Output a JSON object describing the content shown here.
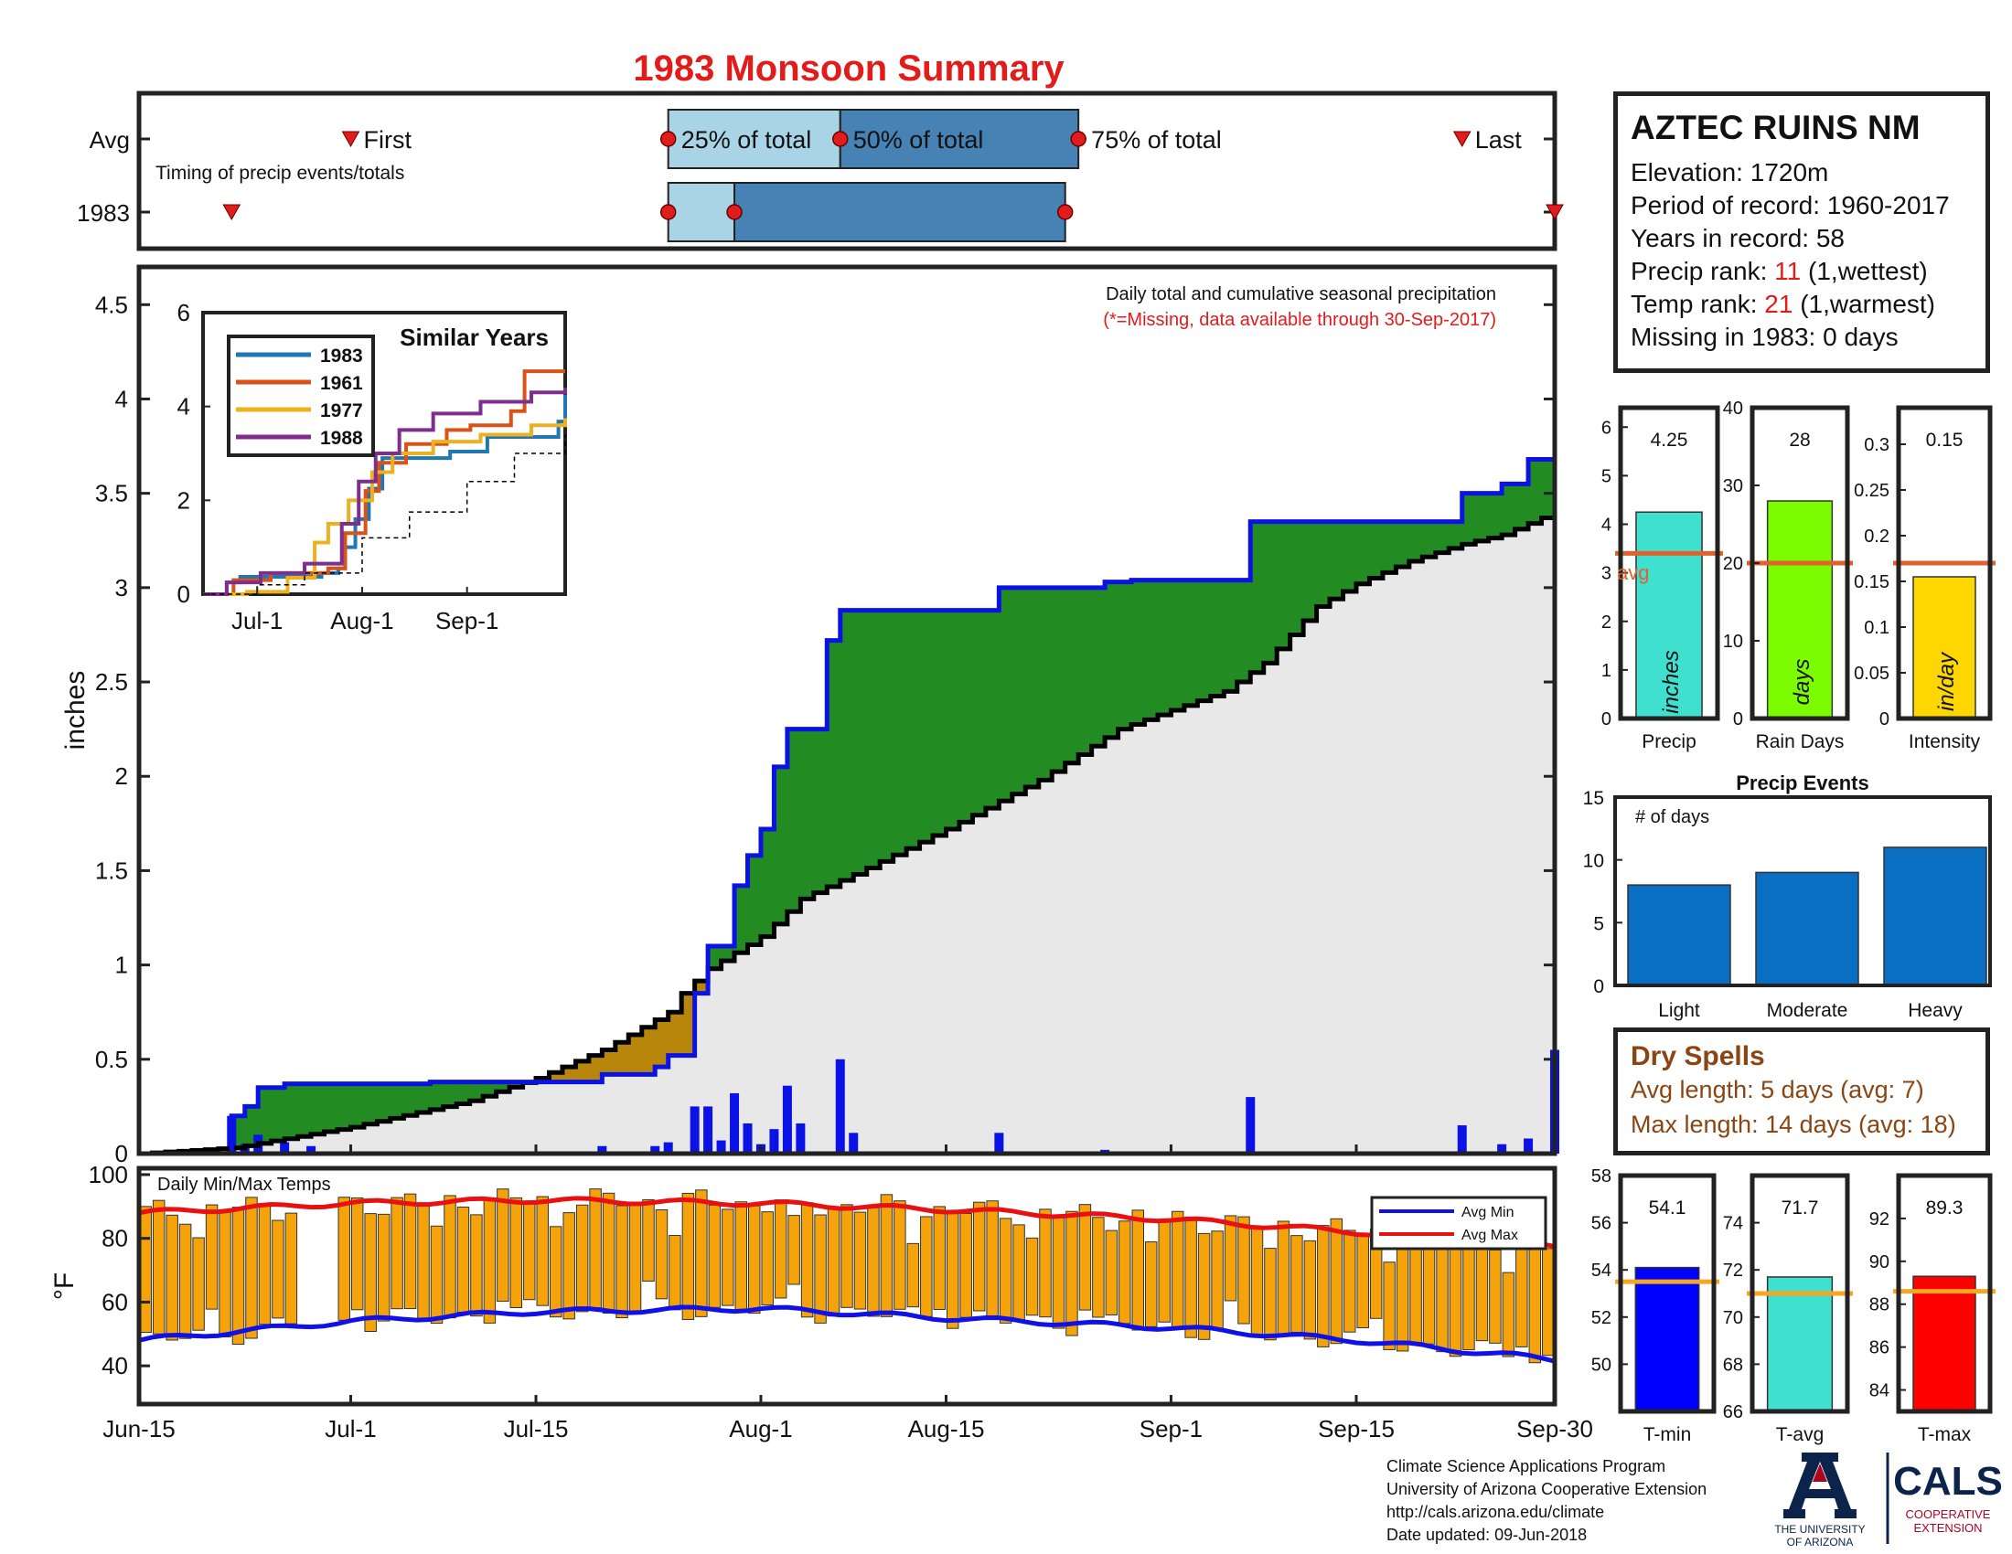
{
  "page": {
    "title": "1983 Monsoon Summary"
  },
  "station": {
    "name": "AZTEC RUINS NM",
    "elevation": "Elevation: 1720m",
    "period": "Period of record: 1960-2017",
    "years": "Years in record: 58",
    "precip_rank_label": "Precip rank: ",
    "precip_rank_value": "11",
    "precip_rank_note": " (1,wettest)",
    "temp_rank_label": "Temp rank: ",
    "temp_rank_value": "21",
    "temp_rank_note": " (1,warmest)",
    "missing": "Missing in 1983: 0 days"
  },
  "dry_spells": {
    "title": "Dry Spells",
    "avg": "Avg length: 5 days (avg: 7)",
    "max": "Max length: 14 days (avg: 18)"
  },
  "credits": {
    "line1": "Climate Science Applications Program",
    "line2": "University of Arizona Cooperative Extension",
    "line3": "http://cals.arizona.edu/climate",
    "line4": "Date updated: 09-Jun-2018",
    "ua_line1": "THE UNIVERSITY",
    "ua_line2": "OF ARIZONA",
    "cals_name": "CALS",
    "cals_line1": "COOPERATIVE",
    "cals_line2": "EXTENSION"
  },
  "colors": {
    "title": "#e21b1b",
    "cumulative_line": "#0a12e6",
    "above_avg_fill": "#228b22",
    "below_avg_fill": "#b8860b",
    "avg_area": "#e8e8e8",
    "daily_bar": "#0a12e6",
    "temp_bar": "#f5a30a",
    "avg_min": "#1010e8",
    "avg_max": "#e81010",
    "light_blue": "#a8d4e6",
    "steel_blue": "#4682b4",
    "precip_bar": "#40e0d0",
    "days_bar": "#7cfc00",
    "intensity_bar": "#ffd700",
    "events_bar": "#0a6fc2",
    "tmin_bar": "#0000ff",
    "tavg_bar": "#40e0d0",
    "tmax_bar": "#ff0000",
    "avg_line_orange": "#e0622a",
    "avg_line_yellow": "#f5a623"
  },
  "chart_data": [
    {
      "id": "timing",
      "type": "bar",
      "title": "",
      "rows": [
        "Avg",
        "1983"
      ],
      "note": "Timing of precip events/totals",
      "labels": {
        "first": "First",
        "p25": "25% of total",
        "p50": "50% of total",
        "p75": "75% of total",
        "last": "Last"
      },
      "avg": {
        "first": "2021-07-01",
        "p25": "2021-07-25",
        "p50": "2021-08-07",
        "p75": "2021-08-25",
        "last": "2021-09-23"
      },
      "year": {
        "first": "2021-06-22",
        "p25": "2021-07-25",
        "p50": "2021-07-30",
        "p75": "2021-08-24",
        "last": "2021-09-30"
      },
      "xlim": [
        "2021-06-15",
        "2021-09-30"
      ]
    },
    {
      "id": "precip_main",
      "type": "area",
      "title": "Daily total and cumulative seasonal precipitation",
      "subtitle": "(*=Missing, data available through 30-Sep-2017)",
      "ylabel": "inches",
      "ylim": [
        0,
        4.7
      ],
      "yticks": [
        0,
        0.5,
        1,
        1.5,
        2,
        2.5,
        3,
        3.5,
        4,
        4.5
      ],
      "xticks": [
        "Jun-15",
        "Jul-1",
        "Jul-15",
        "Aug-1",
        "Aug-15",
        "Sep-1",
        "Sep-15",
        "Sep-30"
      ],
      "xtick_dates": [
        "2021-06-15",
        "2021-07-01",
        "2021-07-15",
        "2021-08-01",
        "2021-08-15",
        "2021-09-01",
        "2021-09-15",
        "2021-09-30"
      ],
      "daily_precip": [
        {
          "date": "2021-06-22",
          "inches": 0.2
        },
        {
          "date": "2021-06-23",
          "inches": 0.05
        },
        {
          "date": "2021-06-24",
          "inches": 0.1
        },
        {
          "date": "2021-06-26",
          "inches": 0.06
        },
        {
          "date": "2021-06-28",
          "inches": 0.04
        },
        {
          "date": "2021-07-07",
          "inches": 0.01
        },
        {
          "date": "2021-07-20",
          "inches": 0.04
        },
        {
          "date": "2021-07-24",
          "inches": 0.04
        },
        {
          "date": "2021-07-25",
          "inches": 0.06
        },
        {
          "date": "2021-07-27",
          "inches": 0.25
        },
        {
          "date": "2021-07-28",
          "inches": 0.25
        },
        {
          "date": "2021-07-29",
          "inches": 0.07
        },
        {
          "date": "2021-07-30",
          "inches": 0.32
        },
        {
          "date": "2021-07-31",
          "inches": 0.16
        },
        {
          "date": "2021-08-01",
          "inches": 0.05
        },
        {
          "date": "2021-08-02",
          "inches": 0.13
        },
        {
          "date": "2021-08-03",
          "inches": 0.36
        },
        {
          "date": "2021-08-04",
          "inches": 0.16
        },
        {
          "date": "2021-08-07",
          "inches": 0.5
        },
        {
          "date": "2021-08-08",
          "inches": 0.11
        },
        {
          "date": "2021-08-19",
          "inches": 0.11
        },
        {
          "date": "2021-08-27",
          "inches": 0.02
        },
        {
          "date": "2021-09-07",
          "inches": 0.3
        },
        {
          "date": "2021-09-23",
          "inches": 0.15
        },
        {
          "date": "2021-09-26",
          "inches": 0.05
        },
        {
          "date": "2021-09-28",
          "inches": 0.08
        },
        {
          "date": "2021-09-30",
          "inches": 0.55
        }
      ],
      "cumulative_1983": [
        {
          "date": "2021-06-15",
          "inches": 0
        },
        {
          "date": "2021-06-22",
          "inches": 0.2
        },
        {
          "date": "2021-06-23",
          "inches": 0.25
        },
        {
          "date": "2021-06-24",
          "inches": 0.35
        },
        {
          "date": "2021-06-26",
          "inches": 0.37
        },
        {
          "date": "2021-07-07",
          "inches": 0.38
        },
        {
          "date": "2021-07-20",
          "inches": 0.42
        },
        {
          "date": "2021-07-24",
          "inches": 0.46
        },
        {
          "date": "2021-07-25",
          "inches": 0.52
        },
        {
          "date": "2021-07-27",
          "inches": 0.85
        },
        {
          "date": "2021-07-28",
          "inches": 1.1
        },
        {
          "date": "2021-07-30",
          "inches": 1.42
        },
        {
          "date": "2021-07-31",
          "inches": 1.58
        },
        {
          "date": "2021-08-01",
          "inches": 1.72
        },
        {
          "date": "2021-08-02",
          "inches": 2.05
        },
        {
          "date": "2021-08-03",
          "inches": 2.25
        },
        {
          "date": "2021-08-06",
          "inches": 2.72
        },
        {
          "date": "2021-08-07",
          "inches": 2.88
        },
        {
          "date": "2021-08-19",
          "inches": 3.0
        },
        {
          "date": "2021-08-27",
          "inches": 3.03
        },
        {
          "date": "2021-08-29",
          "inches": 3.04
        },
        {
          "date": "2021-09-07",
          "inches": 3.35
        },
        {
          "date": "2021-09-23",
          "inches": 3.5
        },
        {
          "date": "2021-09-26",
          "inches": 3.55
        },
        {
          "date": "2021-09-28",
          "inches": 3.68
        },
        {
          "date": "2021-09-30",
          "inches": 4.25
        }
      ],
      "cumulative_avg": [
        {
          "date": "2021-06-15",
          "inches": 0
        },
        {
          "date": "2021-06-22",
          "inches": 0.03
        },
        {
          "date": "2021-07-01",
          "inches": 0.14
        },
        {
          "date": "2021-07-10",
          "inches": 0.28
        },
        {
          "date": "2021-07-15",
          "inches": 0.4
        },
        {
          "date": "2021-07-20",
          "inches": 0.55
        },
        {
          "date": "2021-07-25",
          "inches": 0.75
        },
        {
          "date": "2021-07-26",
          "inches": 0.85
        },
        {
          "date": "2021-07-28",
          "inches": 0.98
        },
        {
          "date": "2021-08-01",
          "inches": 1.15
        },
        {
          "date": "2021-08-04",
          "inches": 1.35
        },
        {
          "date": "2021-08-08",
          "inches": 1.48
        },
        {
          "date": "2021-08-15",
          "inches": 1.72
        },
        {
          "date": "2021-08-22",
          "inches": 1.98
        },
        {
          "date": "2021-08-28",
          "inches": 2.25
        },
        {
          "date": "2021-09-01",
          "inches": 2.35
        },
        {
          "date": "2021-09-05",
          "inches": 2.45
        },
        {
          "date": "2021-09-08",
          "inches": 2.6
        },
        {
          "date": "2021-09-12",
          "inches": 2.9
        },
        {
          "date": "2021-09-15",
          "inches": 3.02
        },
        {
          "date": "2021-09-19",
          "inches": 3.14
        },
        {
          "date": "2021-09-23",
          "inches": 3.23
        },
        {
          "date": "2021-09-26",
          "inches": 3.28
        },
        {
          "date": "2021-09-30",
          "inches": 3.4
        }
      ]
    },
    {
      "id": "similar_years",
      "type": "line",
      "title": "Similar Years",
      "ylim": [
        0,
        6
      ],
      "yticks": [
        0,
        2,
        4,
        6
      ],
      "xticks": [
        "Jul-1",
        "Aug-1",
        "Sep-1"
      ],
      "xtick_dates": [
        "2021-07-01",
        "2021-08-01",
        "2021-09-01"
      ],
      "xlim": [
        "2021-06-15",
        "2021-09-30"
      ],
      "series": [
        {
          "name": "1983",
          "color": "#1f77b4",
          "points": [
            [
              "2021-06-15",
              0
            ],
            [
              "2021-06-22",
              0.25
            ],
            [
              "2021-06-26",
              0.37
            ],
            [
              "2021-07-20",
              0.45
            ],
            [
              "2021-07-25",
              0.55
            ],
            [
              "2021-07-27",
              1.0
            ],
            [
              "2021-07-30",
              1.6
            ],
            [
              "2021-08-03",
              2.25
            ],
            [
              "2021-08-07",
              2.9
            ],
            [
              "2021-08-27",
              3.04
            ],
            [
              "2021-09-07",
              3.35
            ],
            [
              "2021-09-28",
              3.68
            ],
            [
              "2021-09-30",
              4.25
            ]
          ]
        },
        {
          "name": "1961",
          "color": "#d95319",
          "points": [
            [
              "2021-06-15",
              0
            ],
            [
              "2021-06-24",
              0.3
            ],
            [
              "2021-07-05",
              0.45
            ],
            [
              "2021-07-22",
              0.55
            ],
            [
              "2021-07-27",
              1.3
            ],
            [
              "2021-08-02",
              2.2
            ],
            [
              "2021-08-06",
              2.8
            ],
            [
              "2021-08-14",
              3.2
            ],
            [
              "2021-08-26",
              3.5
            ],
            [
              "2021-09-02",
              3.6
            ],
            [
              "2021-09-14",
              3.9
            ],
            [
              "2021-09-18",
              4.75
            ],
            [
              "2021-09-30",
              4.75
            ]
          ]
        },
        {
          "name": "1977",
          "color": "#edb120",
          "points": [
            [
              "2021-06-15",
              0
            ],
            [
              "2021-06-28",
              0.05
            ],
            [
              "2021-07-10",
              0.35
            ],
            [
              "2021-07-18",
              1.1
            ],
            [
              "2021-07-22",
              1.5
            ],
            [
              "2021-07-28",
              2.0
            ],
            [
              "2021-08-04",
              2.6
            ],
            [
              "2021-08-10",
              3.0
            ],
            [
              "2021-08-22",
              3.25
            ],
            [
              "2021-09-05",
              3.4
            ],
            [
              "2021-09-20",
              3.6
            ],
            [
              "2021-09-30",
              3.75
            ]
          ]
        },
        {
          "name": "1988",
          "color": "#7e2f8e",
          "points": [
            [
              "2021-06-15",
              0
            ],
            [
              "2021-06-22",
              0.25
            ],
            [
              "2021-07-02",
              0.45
            ],
            [
              "2021-07-15",
              0.65
            ],
            [
              "2021-07-26",
              1.5
            ],
            [
              "2021-07-31",
              2.4
            ],
            [
              "2021-08-05",
              3.0
            ],
            [
              "2021-08-12",
              3.5
            ],
            [
              "2021-08-22",
              3.85
            ],
            [
              "2021-09-05",
              4.1
            ],
            [
              "2021-09-20",
              4.3
            ],
            [
              "2021-09-30",
              4.4
            ]
          ]
        },
        {
          "name": "",
          "color": "#000000",
          "dashed": true,
          "points": [
            [
              "2021-06-15",
              0
            ],
            [
              "2021-07-01",
              0.2
            ],
            [
              "2021-07-15",
              0.45
            ],
            [
              "2021-08-01",
              1.2
            ],
            [
              "2021-08-15",
              1.75
            ],
            [
              "2021-09-01",
              2.4
            ],
            [
              "2021-09-15",
              3.0
            ],
            [
              "2021-09-30",
              3.4
            ]
          ]
        }
      ]
    },
    {
      "id": "temps",
      "type": "bar",
      "title": "Daily Min/Max Temps",
      "ylabel": "°F",
      "ylim": [
        28,
        102
      ],
      "yticks": [
        40,
        60,
        80,
        100
      ],
      "legend": [
        "Avg Min",
        "Avg Max"
      ],
      "avg_max": [
        [
          "2021-06-15",
          88
        ],
        [
          "2021-07-01",
          91
        ],
        [
          "2021-07-15",
          92
        ],
        [
          "2021-08-01",
          91
        ],
        [
          "2021-08-15",
          89
        ],
        [
          "2021-09-01",
          86
        ],
        [
          "2021-09-15",
          82
        ],
        [
          "2021-09-30",
          78
        ]
      ],
      "avg_min": [
        [
          "2021-06-15",
          48
        ],
        [
          "2021-07-01",
          54
        ],
        [
          "2021-07-15",
          57
        ],
        [
          "2021-08-01",
          58
        ],
        [
          "2021-08-15",
          55
        ],
        [
          "2021-09-01",
          52
        ],
        [
          "2021-09-15",
          48
        ],
        [
          "2021-09-30",
          42
        ]
      ]
    },
    {
      "id": "totals",
      "type": "bar",
      "panels": [
        {
          "label": "Precip",
          "unit": "inches",
          "value": 4.25,
          "value_label": "4.25",
          "avg": 3.4,
          "avg_label": "avg",
          "ylim": [
            0,
            6.4
          ],
          "yticks": [
            0,
            1,
            2,
            3,
            4,
            5,
            6
          ]
        },
        {
          "label": "Rain Days",
          "unit": "days",
          "value": 28,
          "value_label": "28",
          "avg": 20,
          "ylim": [
            0,
            40
          ],
          "yticks": [
            0,
            10,
            20,
            30,
            40
          ]
        },
        {
          "label": "Intensity",
          "unit": "in/day",
          "value": 0.155,
          "value_label": "0.15",
          "avg": 0.17,
          "ylim": [
            0,
            0.34
          ],
          "yticks": [
            "0",
            "0.05",
            "0.1",
            "0.15",
            "0.2",
            "0.25",
            "0.3"
          ]
        }
      ]
    },
    {
      "id": "events",
      "type": "bar",
      "title": "Precip Events",
      "ylabel": "# of days",
      "categories": [
        "Light",
        "Moderate",
        "Heavy"
      ],
      "values": [
        8,
        9,
        11
      ],
      "ylim": [
        0,
        15
      ],
      "yticks": [
        0,
        5,
        10,
        15
      ]
    },
    {
      "id": "temp_summary",
      "type": "bar",
      "panels": [
        {
          "label": "T-min",
          "value": 54.1,
          "value_label": "54.1",
          "avg": 53.5,
          "ylim": [
            48,
            58
          ],
          "yticks": [
            50,
            52,
            54,
            56,
            58
          ]
        },
        {
          "label": "T-avg",
          "value": 71.7,
          "value_label": "71.7",
          "avg": 71.0,
          "ylim": [
            66,
            76
          ],
          "yticks": [
            66,
            68,
            70,
            72,
            74
          ]
        },
        {
          "label": "T-max",
          "value": 89.3,
          "value_label": "89.3",
          "avg": 88.6,
          "ylim": [
            83,
            94
          ],
          "yticks": [
            84,
            86,
            88,
            90,
            92
          ]
        }
      ]
    }
  ]
}
